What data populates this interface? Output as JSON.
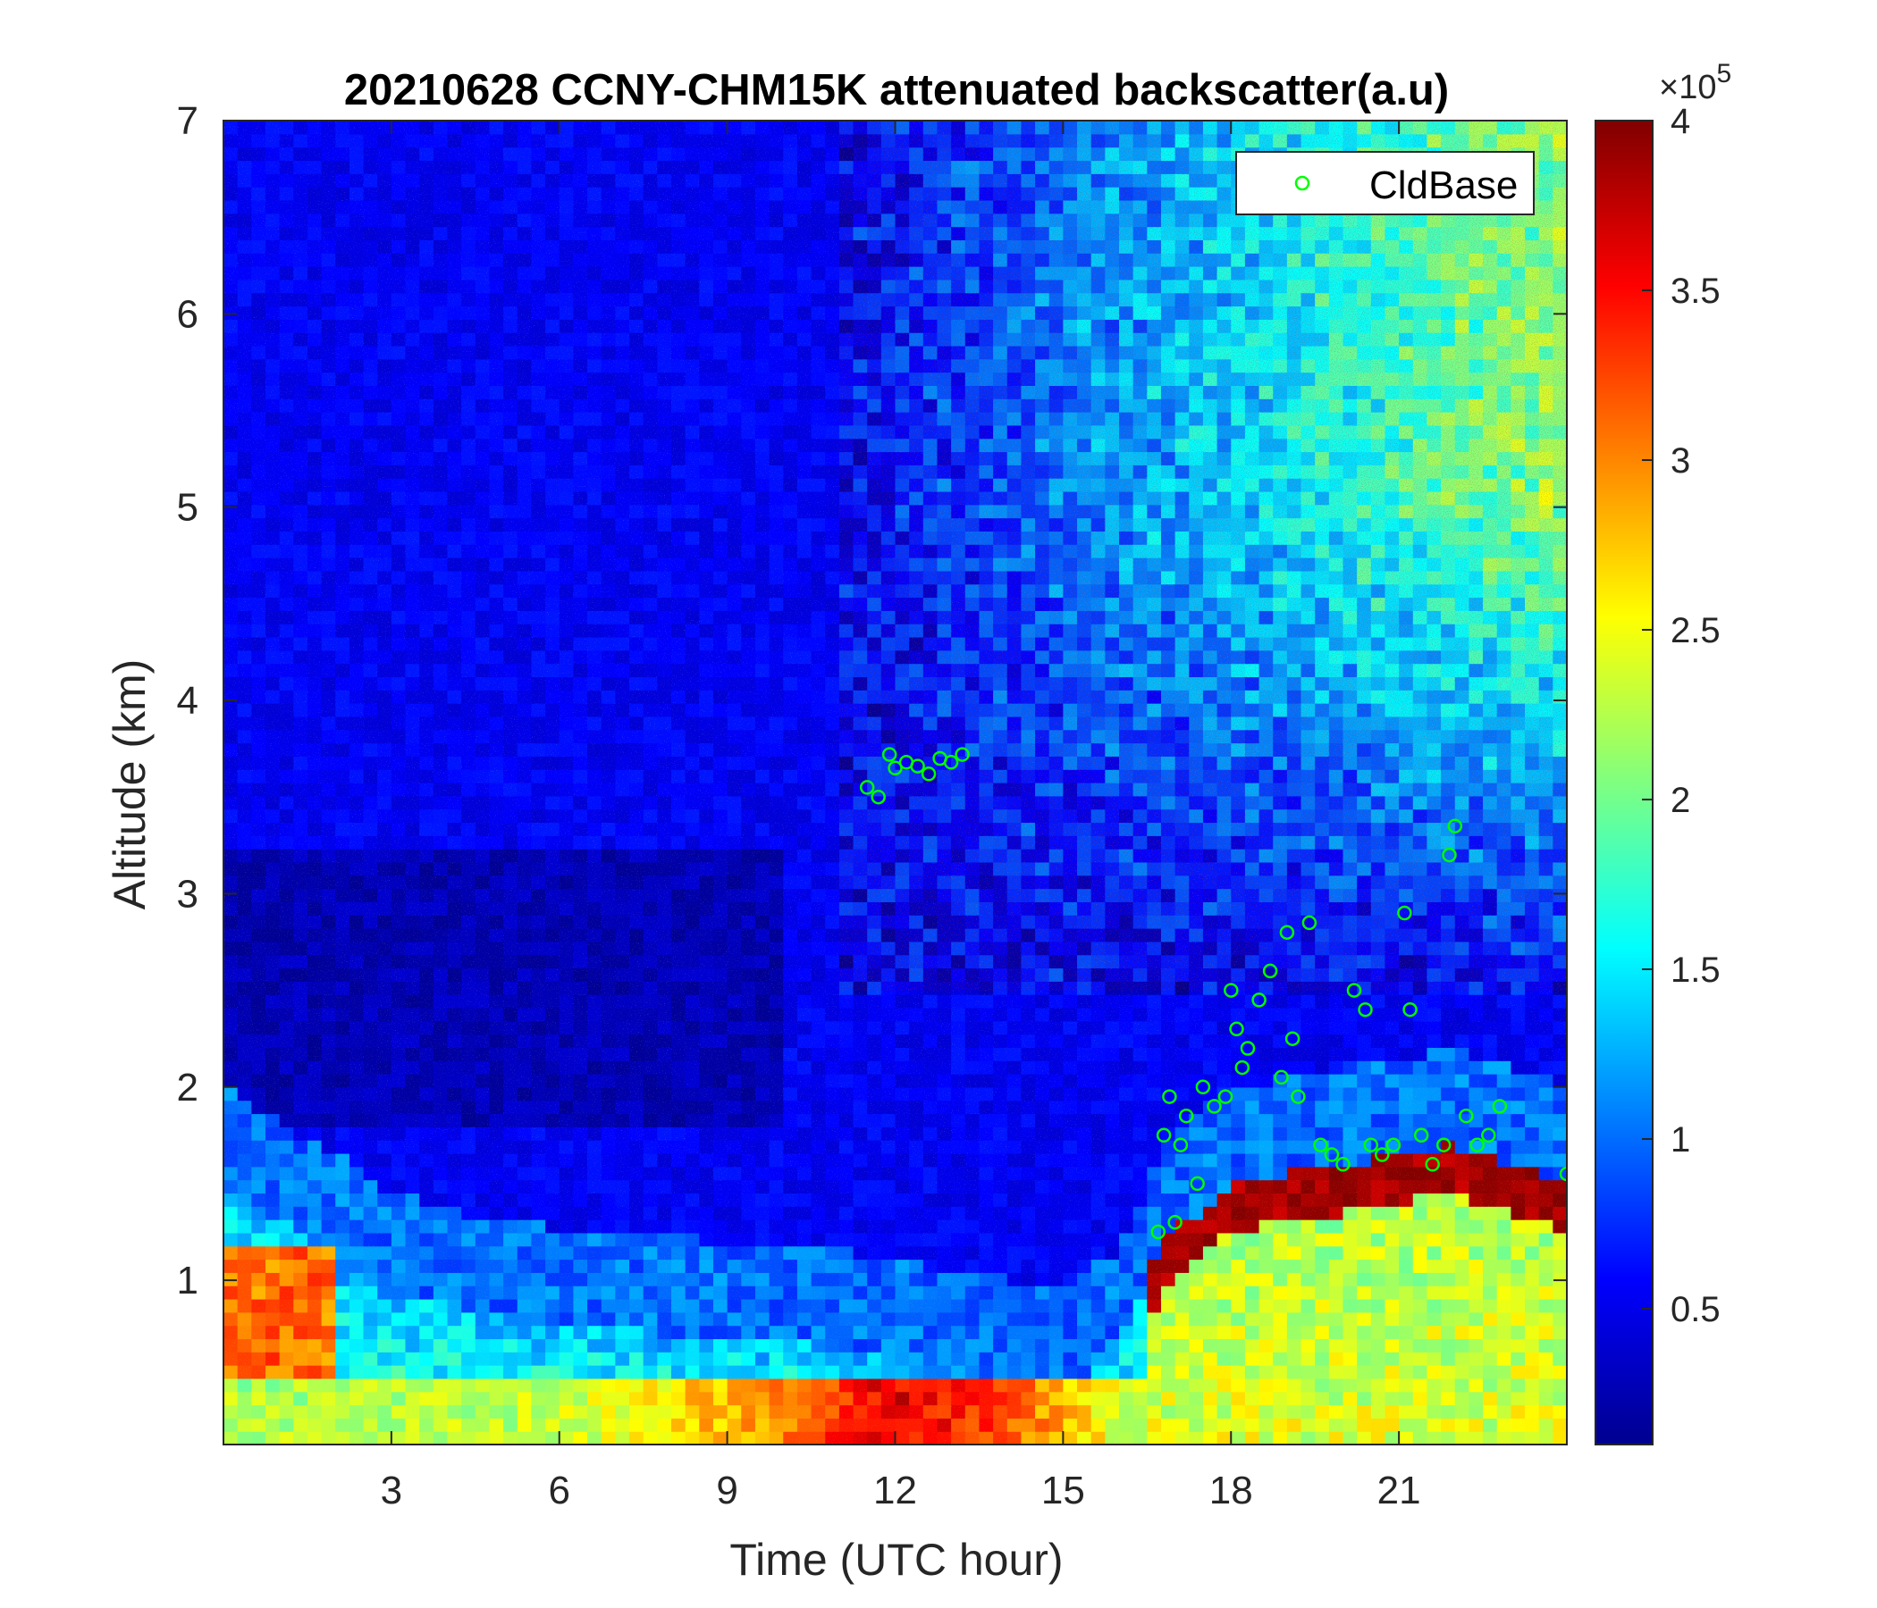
{
  "chart_data": {
    "type": "heatmap",
    "title": "20210628 CCNY-CHM15K attenuated backscatter(a.u)",
    "xlabel": "Time (UTC hour)",
    "ylabel": "Altitude (km)",
    "xlim": [
      0,
      24
    ],
    "ylim": [
      0.15,
      7
    ],
    "xticks": [
      3,
      6,
      9,
      12,
      15,
      18,
      21
    ],
    "yticks": [
      1,
      2,
      3,
      4,
      5,
      6,
      7
    ],
    "colorbar": {
      "colormap": "jet",
      "clim": [
        0.1,
        4
      ],
      "ticks": [
        0.5,
        1,
        1.5,
        2,
        2.5,
        3,
        3.5,
        4
      ],
      "exponent_label": "×10",
      "exponent": "5"
    },
    "legend": {
      "placement": "top-right",
      "entries": [
        {
          "label": "CldBase",
          "marker": "circle",
          "color": "#00ff00"
        }
      ]
    },
    "colors": {
      "marker": "#00ff00",
      "background": "#ffffff"
    },
    "field": {
      "description": "backscatter intensity in units of 1e5",
      "mixing_layer_top_km": [
        [
          0,
          1.5
        ],
        [
          2,
          1.15
        ],
        [
          3,
          0.95
        ],
        [
          5,
          0.8
        ],
        [
          7,
          0.75
        ],
        [
          9,
          0.7
        ],
        [
          11,
          0.65
        ],
        [
          13,
          0.55
        ],
        [
          15,
          0.45
        ],
        [
          16,
          0.65
        ],
        [
          16.8,
          1.2
        ],
        [
          18,
          1.5
        ],
        [
          20,
          1.6
        ],
        [
          22,
          1.7
        ],
        [
          24,
          1.5
        ]
      ],
      "surface_layer_value": [
        [
          0,
          2.2
        ],
        [
          6,
          2.3
        ],
        [
          9,
          2.8
        ],
        [
          12,
          3.6
        ],
        [
          14,
          3.2
        ],
        [
          16,
          2.4
        ],
        [
          17,
          2.3
        ],
        [
          24,
          2.2
        ]
      ]
    },
    "series": [
      {
        "name": "CldBase",
        "marker": "circle",
        "x": [
          11.5,
          11.7,
          11.9,
          12.0,
          12.2,
          12.4,
          12.6,
          12.8,
          13.0,
          13.2,
          16.7,
          16.8,
          16.9,
          17.0,
          17.1,
          17.2,
          17.4,
          17.5,
          17.7,
          17.9,
          18.0,
          18.1,
          18.2,
          18.3,
          18.5,
          18.7,
          18.9,
          19.0,
          19.1,
          19.2,
          19.4,
          19.6,
          19.8,
          20.0,
          20.2,
          20.4,
          20.5,
          20.7,
          20.9,
          21.1,
          21.2,
          21.4,
          21.6,
          21.8,
          21.9,
          22.0,
          22.2,
          22.4,
          22.6,
          22.8,
          24.0
        ],
        "y": [
          3.55,
          3.5,
          3.72,
          3.65,
          3.68,
          3.66,
          3.62,
          3.7,
          3.68,
          3.72,
          1.25,
          1.75,
          1.95,
          1.3,
          1.7,
          1.85,
          1.5,
          2.0,
          1.9,
          1.95,
          2.5,
          2.3,
          2.1,
          2.2,
          2.45,
          2.6,
          2.05,
          2.8,
          2.25,
          1.95,
          2.85,
          1.7,
          1.65,
          1.6,
          2.5,
          2.4,
          1.7,
          1.65,
          1.7,
          2.9,
          2.4,
          1.75,
          1.6,
          1.7,
          3.2,
          3.35,
          1.85,
          1.7,
          1.75,
          1.9,
          1.55
        ]
      }
    ]
  }
}
